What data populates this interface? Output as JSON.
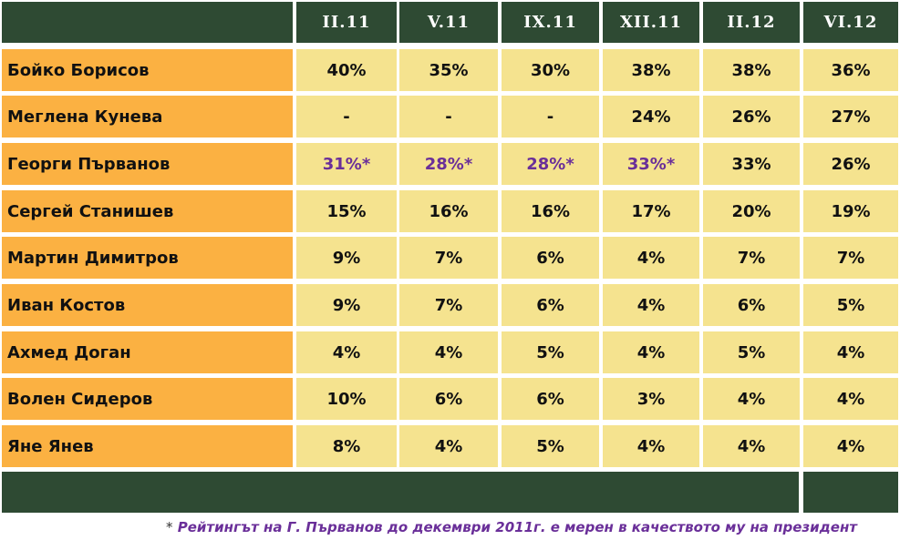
{
  "chart_data": {
    "type": "table",
    "columns": [
      "II.11",
      "V.11",
      "IX.11",
      "XII.11",
      "II.12",
      "VI.12"
    ],
    "rows": [
      {
        "name": "Бойко Борисов",
        "values": [
          "40%",
          "35%",
          "30%",
          "38%",
          "38%",
          "36%"
        ],
        "starred": [
          false,
          false,
          false,
          false,
          false,
          false
        ]
      },
      {
        "name": "Меглена Кунева",
        "values": [
          "-",
          "-",
          "-",
          "24%",
          "26%",
          "27%"
        ],
        "starred": [
          false,
          false,
          false,
          false,
          false,
          false
        ]
      },
      {
        "name": "Георги Първанов",
        "values": [
          "31%*",
          "28%*",
          "28%*",
          "33%*",
          "33%",
          "26%"
        ],
        "starred": [
          true,
          true,
          true,
          true,
          false,
          false
        ]
      },
      {
        "name": "Сергей Станишев",
        "values": [
          "15%",
          "16%",
          "16%",
          "17%",
          "20%",
          "19%"
        ],
        "starred": [
          false,
          false,
          false,
          false,
          false,
          false
        ]
      },
      {
        "name": "Мартин Димитров",
        "values": [
          "9%",
          "7%",
          "6%",
          "4%",
          "7%",
          "7%"
        ],
        "starred": [
          false,
          false,
          false,
          false,
          false,
          false
        ]
      },
      {
        "name": "Иван Костов",
        "values": [
          "9%",
          "7%",
          "6%",
          "4%",
          "6%",
          "5%"
        ],
        "starred": [
          false,
          false,
          false,
          false,
          false,
          false
        ]
      },
      {
        "name": "Ахмед Доган",
        "values": [
          "4%",
          "4%",
          "5%",
          "4%",
          "5%",
          "4%"
        ],
        "starred": [
          false,
          false,
          false,
          false,
          false,
          false
        ]
      },
      {
        "name": "Волен Сидеров",
        "values": [
          "10%",
          "6%",
          "6%",
          "3%",
          "4%",
          "4%"
        ],
        "starred": [
          false,
          false,
          false,
          false,
          false,
          false
        ]
      },
      {
        "name": "Яне Янев",
        "values": [
          "8%",
          "4%",
          "5%",
          "4%",
          "4%",
          "4%"
        ],
        "starred": [
          false,
          false,
          false,
          false,
          false,
          false
        ]
      }
    ],
    "footnote": {
      "star": "*",
      "text": "Рейтингът на Г. Първанов до декември 2011г. е мерен  в качеството му на президент"
    }
  },
  "colors": {
    "header_bg": "#2e4a33",
    "header_text": "#ffffff",
    "name_bg": "#fbb142",
    "value_bg": "#f5e38f",
    "starred_text": "#6a2f99",
    "footnote_text": "#6a2f99"
  }
}
